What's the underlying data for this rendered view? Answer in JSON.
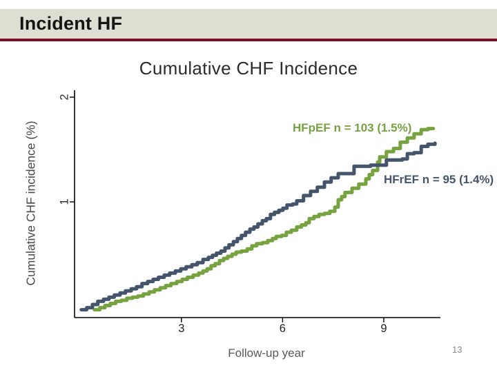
{
  "slide": {
    "header": "Incident HF",
    "page_number": "13"
  },
  "colors": {
    "header_band": "#DEDED2",
    "accent_rule": "#7A102A",
    "hfpef_green": "#76A240",
    "hfref_slate": "#44546A"
  },
  "chart_data": {
    "type": "line",
    "subtype": "step-cumulative-incidence",
    "title": "Cumulative CHF Incidence",
    "xlabel": "Follow-up year",
    "ylabel": "Cumulative CHF incidence (%)",
    "grid": false,
    "legend_position": "annotations-inside-plot",
    "xlim": [
      -0.17,
      10.68
    ],
    "ylim": [
      -0.105,
      2.066
    ],
    "xticks": [
      3,
      6,
      9
    ],
    "yticks": [
      1,
      2
    ],
    "series": [
      {
        "name": "HFpEF",
        "label": "HFpEF n = 103 (1.5%)",
        "n": 103,
        "final_pct_label": "1.5%",
        "color": "#76A240",
        "points": [
          [
            0.42,
            -0.03
          ],
          [
            0.58,
            -0.01
          ],
          [
            0.73,
            0.01
          ],
          [
            0.89,
            0.03
          ],
          [
            1.05,
            0.05
          ],
          [
            1.22,
            0.06
          ],
          [
            1.38,
            0.08
          ],
          [
            1.55,
            0.09
          ],
          [
            1.71,
            0.1
          ],
          [
            1.87,
            0.12
          ],
          [
            2.04,
            0.14
          ],
          [
            2.2,
            0.16
          ],
          [
            2.37,
            0.18
          ],
          [
            2.53,
            0.2
          ],
          [
            2.69,
            0.22
          ],
          [
            2.86,
            0.24
          ],
          [
            3.02,
            0.26
          ],
          [
            3.18,
            0.28
          ],
          [
            3.35,
            0.3
          ],
          [
            3.51,
            0.32
          ],
          [
            3.64,
            0.34
          ],
          [
            3.76,
            0.36
          ],
          [
            3.88,
            0.39
          ],
          [
            4.0,
            0.41
          ],
          [
            4.13,
            0.44
          ],
          [
            4.25,
            0.46
          ],
          [
            4.37,
            0.48
          ],
          [
            4.5,
            0.5
          ],
          [
            4.62,
            0.52
          ],
          [
            4.78,
            0.53
          ],
          [
            4.95,
            0.55
          ],
          [
            5.09,
            0.58
          ],
          [
            5.23,
            0.6
          ],
          [
            5.4,
            0.61
          ],
          [
            5.56,
            0.63
          ],
          [
            5.7,
            0.65
          ],
          [
            5.81,
            0.67
          ],
          [
            5.97,
            0.68
          ],
          [
            6.11,
            0.71
          ],
          [
            6.26,
            0.73
          ],
          [
            6.42,
            0.76
          ],
          [
            6.56,
            0.78
          ],
          [
            6.69,
            0.8
          ],
          [
            6.79,
            0.84
          ],
          [
            6.93,
            0.86
          ],
          [
            7.08,
            0.88
          ],
          [
            7.24,
            0.89
          ],
          [
            7.4,
            0.91
          ],
          [
            7.55,
            0.95
          ],
          [
            7.65,
            1.02
          ],
          [
            7.75,
            1.05
          ],
          [
            7.85,
            1.09
          ],
          [
            8.06,
            1.13
          ],
          [
            8.26,
            1.17
          ],
          [
            8.47,
            1.22
          ],
          [
            8.57,
            1.26
          ],
          [
            8.67,
            1.3
          ],
          [
            8.82,
            1.38
          ],
          [
            8.88,
            1.43
          ],
          [
            9.08,
            1.48
          ],
          [
            9.29,
            1.51
          ],
          [
            9.49,
            1.57
          ],
          [
            9.7,
            1.61
          ],
          [
            9.9,
            1.65
          ],
          [
            10.11,
            1.69
          ],
          [
            10.31,
            1.7
          ],
          [
            10.47,
            1.7
          ]
        ]
      },
      {
        "name": "HFrEF",
        "label": "HFrEF n = 95 (1.4%)",
        "n": 95,
        "final_pct_label": "1.4%",
        "color": "#44546A",
        "points": [
          [
            0.03,
            -0.03
          ],
          [
            0.19,
            -0.01
          ],
          [
            0.36,
            0.02
          ],
          [
            0.52,
            0.05
          ],
          [
            0.69,
            0.07
          ],
          [
            0.85,
            0.09
          ],
          [
            1.01,
            0.11
          ],
          [
            1.18,
            0.13
          ],
          [
            1.34,
            0.15
          ],
          [
            1.51,
            0.17
          ],
          [
            1.67,
            0.19
          ],
          [
            1.83,
            0.22
          ],
          [
            2.0,
            0.24
          ],
          [
            2.16,
            0.26
          ],
          [
            2.32,
            0.28
          ],
          [
            2.49,
            0.3
          ],
          [
            2.65,
            0.32
          ],
          [
            2.82,
            0.34
          ],
          [
            2.98,
            0.36
          ],
          [
            3.14,
            0.38
          ],
          [
            3.31,
            0.4
          ],
          [
            3.47,
            0.42
          ],
          [
            3.64,
            0.45
          ],
          [
            3.8,
            0.47
          ],
          [
            3.92,
            0.49
          ],
          [
            4.04,
            0.51
          ],
          [
            4.17,
            0.53
          ],
          [
            4.29,
            0.56
          ],
          [
            4.41,
            0.59
          ],
          [
            4.54,
            0.62
          ],
          [
            4.66,
            0.65
          ],
          [
            4.78,
            0.68
          ],
          [
            4.9,
            0.71
          ],
          [
            5.03,
            0.74
          ],
          [
            5.15,
            0.76
          ],
          [
            5.27,
            0.79
          ],
          [
            5.4,
            0.82
          ],
          [
            5.52,
            0.84
          ],
          [
            5.64,
            0.88
          ],
          [
            5.76,
            0.9
          ],
          [
            5.89,
            0.92
          ],
          [
            6.01,
            0.94
          ],
          [
            6.13,
            0.97
          ],
          [
            6.3,
            0.98
          ],
          [
            6.42,
            1.01
          ],
          [
            6.62,
            1.06
          ],
          [
            6.83,
            1.1
          ],
          [
            7.03,
            1.14
          ],
          [
            7.24,
            1.19
          ],
          [
            7.44,
            1.23
          ],
          [
            7.65,
            1.27
          ],
          [
            8.12,
            1.34
          ],
          [
            8.61,
            1.35
          ],
          [
            9.08,
            1.4
          ],
          [
            9.55,
            1.41
          ],
          [
            9.7,
            1.46
          ],
          [
            9.9,
            1.47
          ],
          [
            10.11,
            1.53
          ],
          [
            10.31,
            1.55
          ],
          [
            10.52,
            1.56
          ]
        ]
      }
    ]
  }
}
